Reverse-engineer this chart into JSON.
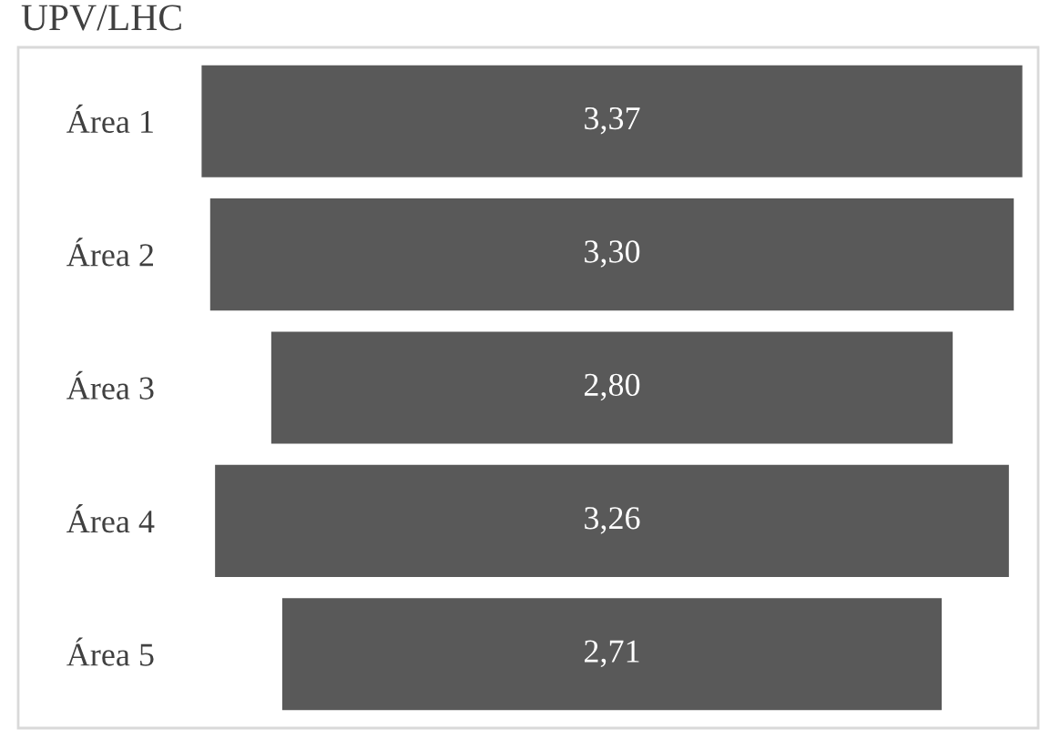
{
  "chart_data": {
    "type": "other",
    "title": "UPV/LHC",
    "categories": [
      "Área 1",
      "Área 2",
      "Área 3",
      "Área 4",
      "Área 5"
    ],
    "values": [
      3.37,
      3.3,
      2.8,
      3.26,
      2.71
    ],
    "value_labels": [
      "3,37",
      "3,30",
      "2,80",
      "3,26",
      "2,71"
    ],
    "color": "#595959"
  }
}
